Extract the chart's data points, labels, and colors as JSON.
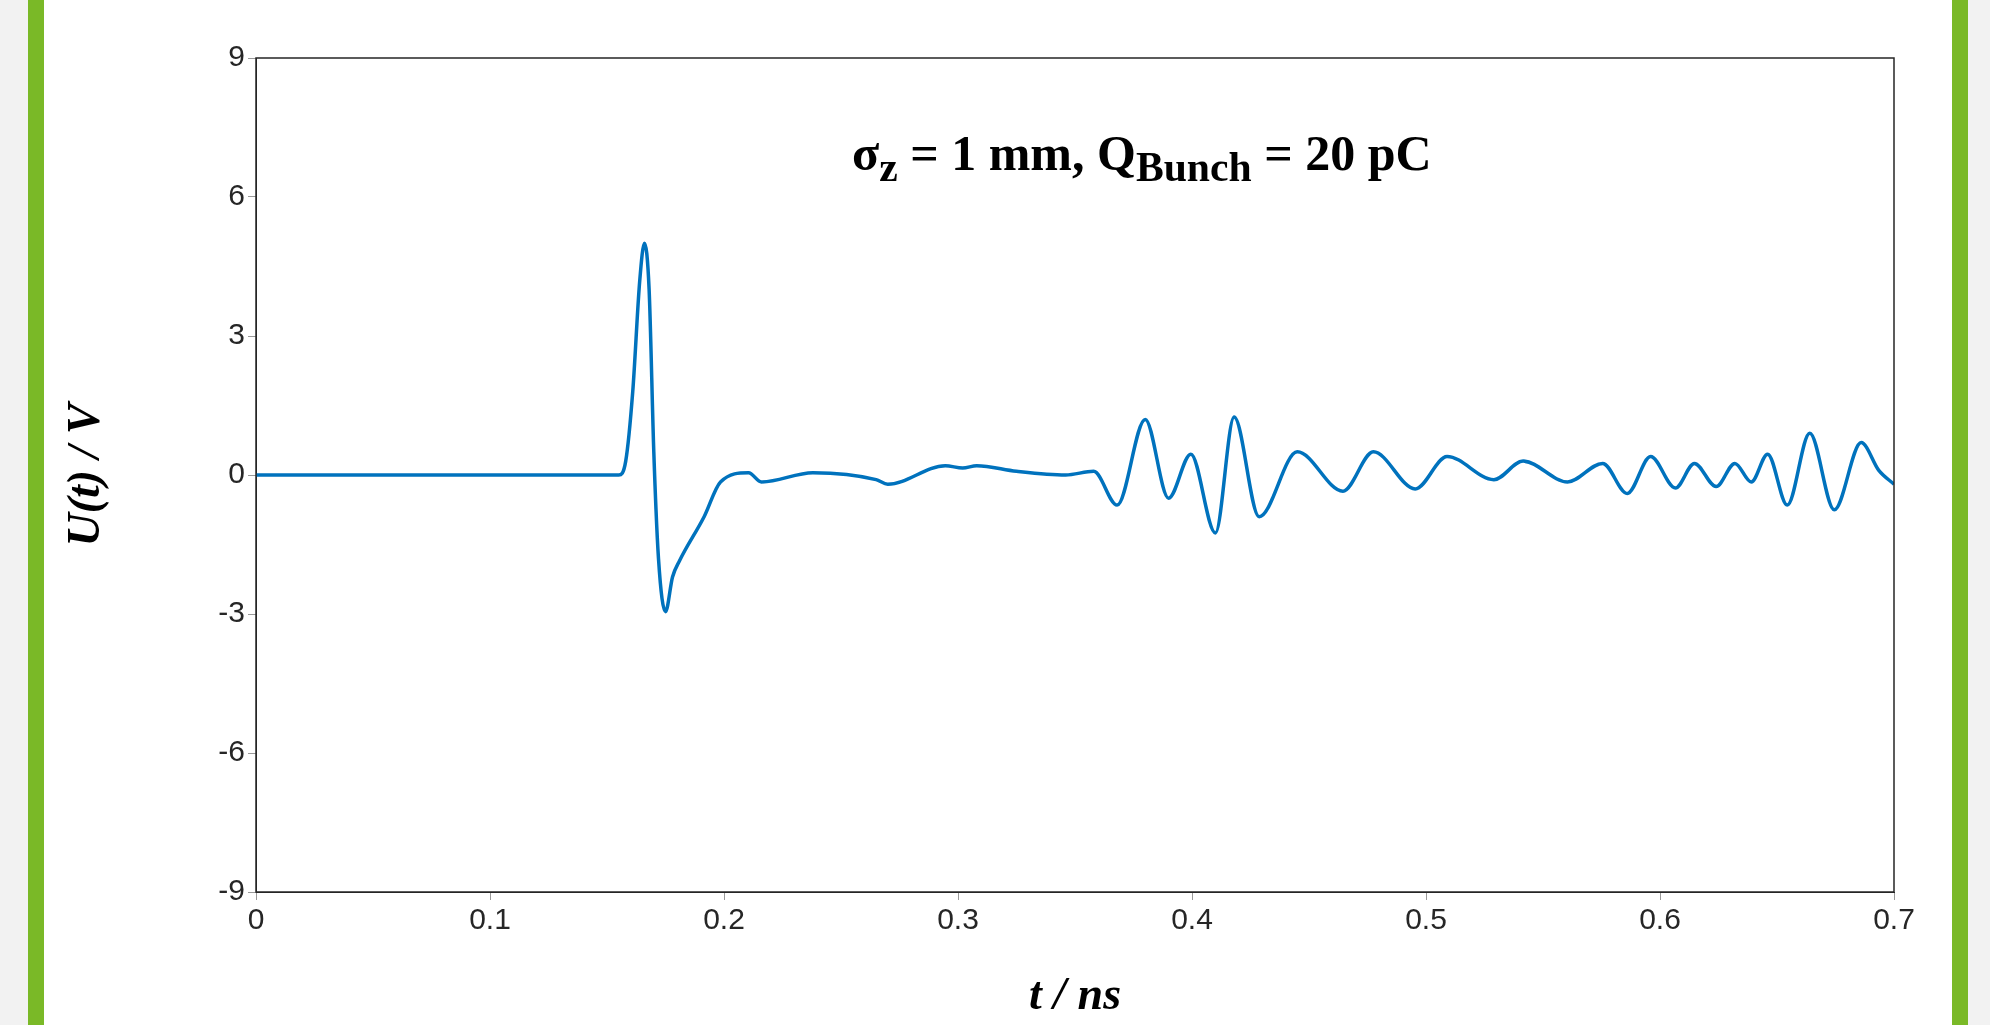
{
  "chart_data": {
    "type": "line",
    "xlabel": "t / ns",
    "ylabel": "U(t) / V",
    "annotations": [
      "σ$_{z}$ = 1 mm, Q$_{Bunch}$ = 20 pC"
    ],
    "xlim": [
      0,
      0.7
    ],
    "xticks": [
      0,
      0.1,
      0.2,
      0.3,
      0.4,
      0.5,
      0.6,
      0.7
    ],
    "ylim": [
      -9,
      9
    ],
    "yticks": [
      -9,
      -6,
      -3,
      0,
      3,
      6,
      9
    ],
    "grid": false,
    "legend": false,
    "marker": "none",
    "line_style": "solid",
    "series": [
      {
        "color": "#0072bd",
        "x": [
          0,
          0.1,
          0.155,
          0.158,
          0.161,
          0.164,
          0.166,
          0.168,
          0.17,
          0.172,
          0.175,
          0.178,
          0.181,
          0.1915,
          0.1985,
          0.2105,
          0.216,
          0.238,
          0.265,
          0.27,
          0.2946,
          0.302,
          0.308,
          0.325,
          0.346,
          0.358,
          0.368,
          0.38,
          0.39,
          0.3995,
          0.41,
          0.418,
          0.4287,
          0.445,
          0.4645,
          0.4775,
          0.4954,
          0.509,
          0.529,
          0.5415,
          0.5605,
          0.5755,
          0.586,
          0.596,
          0.6066,
          0.6147,
          0.624,
          0.632,
          0.639,
          0.646,
          0.6544,
          0.664,
          0.6745,
          0.686,
          0.6935,
          0.7
        ],
        "values": [
          0,
          0,
          0,
          0.3,
          1.8,
          4.2,
          5.0,
          4.0,
          0.5,
          -1.8,
          -2.95,
          -2.2,
          -1.85,
          -0.9,
          -0.15,
          0.05,
          -0.15,
          0.05,
          -0.1,
          -0.2,
          0.2,
          0.15,
          0.2,
          0.08,
          0,
          0.08,
          -0.65,
          1.2,
          -0.5,
          0.45,
          -1.25,
          1.25,
          -0.9,
          0.5,
          -0.35,
          0.5,
          -0.3,
          0.4,
          -0.1,
          0.3,
          -0.15,
          0.25,
          -0.4,
          0.4,
          -0.28,
          0.25,
          -0.25,
          0.25,
          -0.15,
          0.45,
          -0.65,
          0.9,
          -0.75,
          0.7,
          0.1,
          -0.2
        ]
      }
    ]
  }
}
